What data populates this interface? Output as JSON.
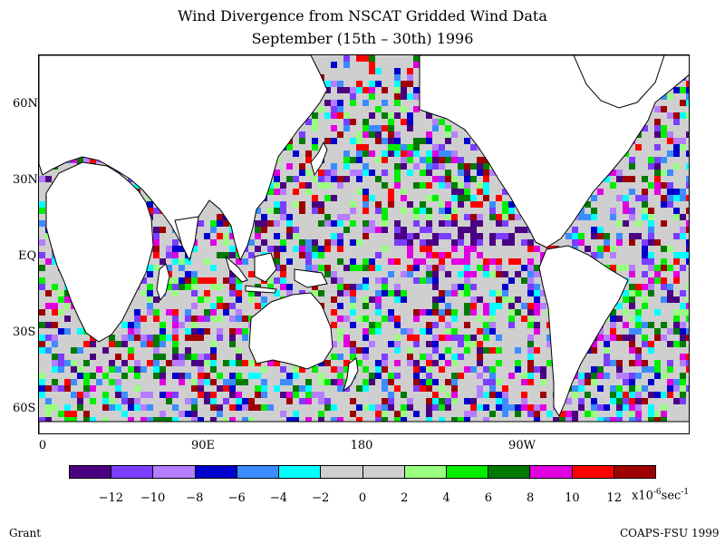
{
  "title_line1": "Wind Divergence from NSCAT Gridded Wind Data",
  "title_line2": "September (15th – 30th) 1996",
  "y_ticks": [
    "60N",
    "30N",
    "EQ",
    "30S",
    "60S"
  ],
  "x_ticks": [
    "0",
    "90E",
    "180",
    "90W"
  ],
  "colorbar": {
    "colors": [
      "#4b0082",
      "#7b3dff",
      "#b57dff",
      "#0000cd",
      "#3c8cff",
      "#00ffff",
      "#cfcfcf",
      "#cfcfcf",
      "#99ff80",
      "#00ee00",
      "#007a00",
      "#e000e0",
      "#ff0000",
      "#9e0000"
    ],
    "labels": [
      "-12",
      "-10",
      "-8",
      "-6",
      "-4",
      "-2",
      "0",
      "2",
      "4",
      "6",
      "8",
      "10",
      "12"
    ],
    "unit_prefix": "x10",
    "unit_exp": "-6",
    "unit_mid": "sec",
    "unit_exp2": "-1"
  },
  "credit_left": "Grant",
  "credit_right": "COAPS-FSU 1999",
  "field_colors": {
    "ocean_base": "#cfcfcf",
    "land": "#ffffff",
    "coast": "#000000"
  }
}
